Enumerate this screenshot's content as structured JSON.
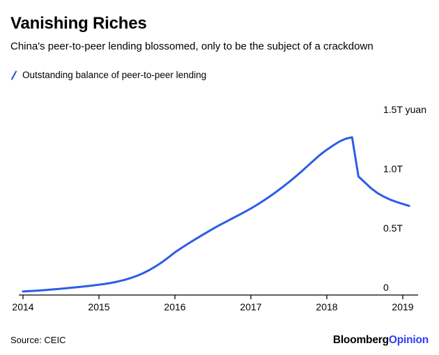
{
  "colors": {
    "line": "#2d5ce8",
    "brand_accent": "#2e3ff0",
    "axis": "#000000",
    "text": "#000000"
  },
  "footer": {
    "source": "Source: CEIC",
    "brand_black": "Bloomberg",
    "brand_accent": "Opinion"
  },
  "chart_data": {
    "type": "line",
    "title": "Vanishing Riches",
    "subtitle": "China's peer-to-peer lending blossomed, only to be the subject of a crackdown",
    "xlabel": "",
    "ylabel": "",
    "unit": "trillion yuan",
    "x_start": "2014-01",
    "frequency": "monthly",
    "xlim": [
      2014.0,
      2019.25
    ],
    "ylim": [
      0,
      1.5
    ],
    "grid": false,
    "legend_position": "top-left",
    "x_ticks": [
      "2014",
      "2015",
      "2016",
      "2017",
      "2018",
      "2019"
    ],
    "y_ticks": [
      "0",
      "0.5T",
      "1.0T",
      "1.5T yuan"
    ],
    "y_tick_values": [
      0,
      0.5,
      1.0,
      1.5
    ],
    "series": [
      {
        "name": "Outstanding balance of peer-to-peer lending",
        "color": "#2d5ce8",
        "values": [
          0.03,
          0.033,
          0.036,
          0.04,
          0.044,
          0.048,
          0.053,
          0.058,
          0.063,
          0.068,
          0.074,
          0.08,
          0.087,
          0.094,
          0.103,
          0.114,
          0.127,
          0.143,
          0.162,
          0.185,
          0.212,
          0.243,
          0.278,
          0.318,
          0.36,
          0.395,
          0.43,
          0.463,
          0.495,
          0.527,
          0.558,
          0.588,
          0.616,
          0.644,
          0.672,
          0.7,
          0.73,
          0.762,
          0.796,
          0.832,
          0.87,
          0.91,
          0.952,
          0.996,
          1.042,
          1.09,
          1.138,
          1.185,
          1.225,
          1.262,
          1.295,
          1.318,
          1.33,
          1.0,
          0.95,
          0.9,
          0.86,
          0.83,
          0.805,
          0.785,
          0.768,
          0.752
        ]
      }
    ]
  }
}
